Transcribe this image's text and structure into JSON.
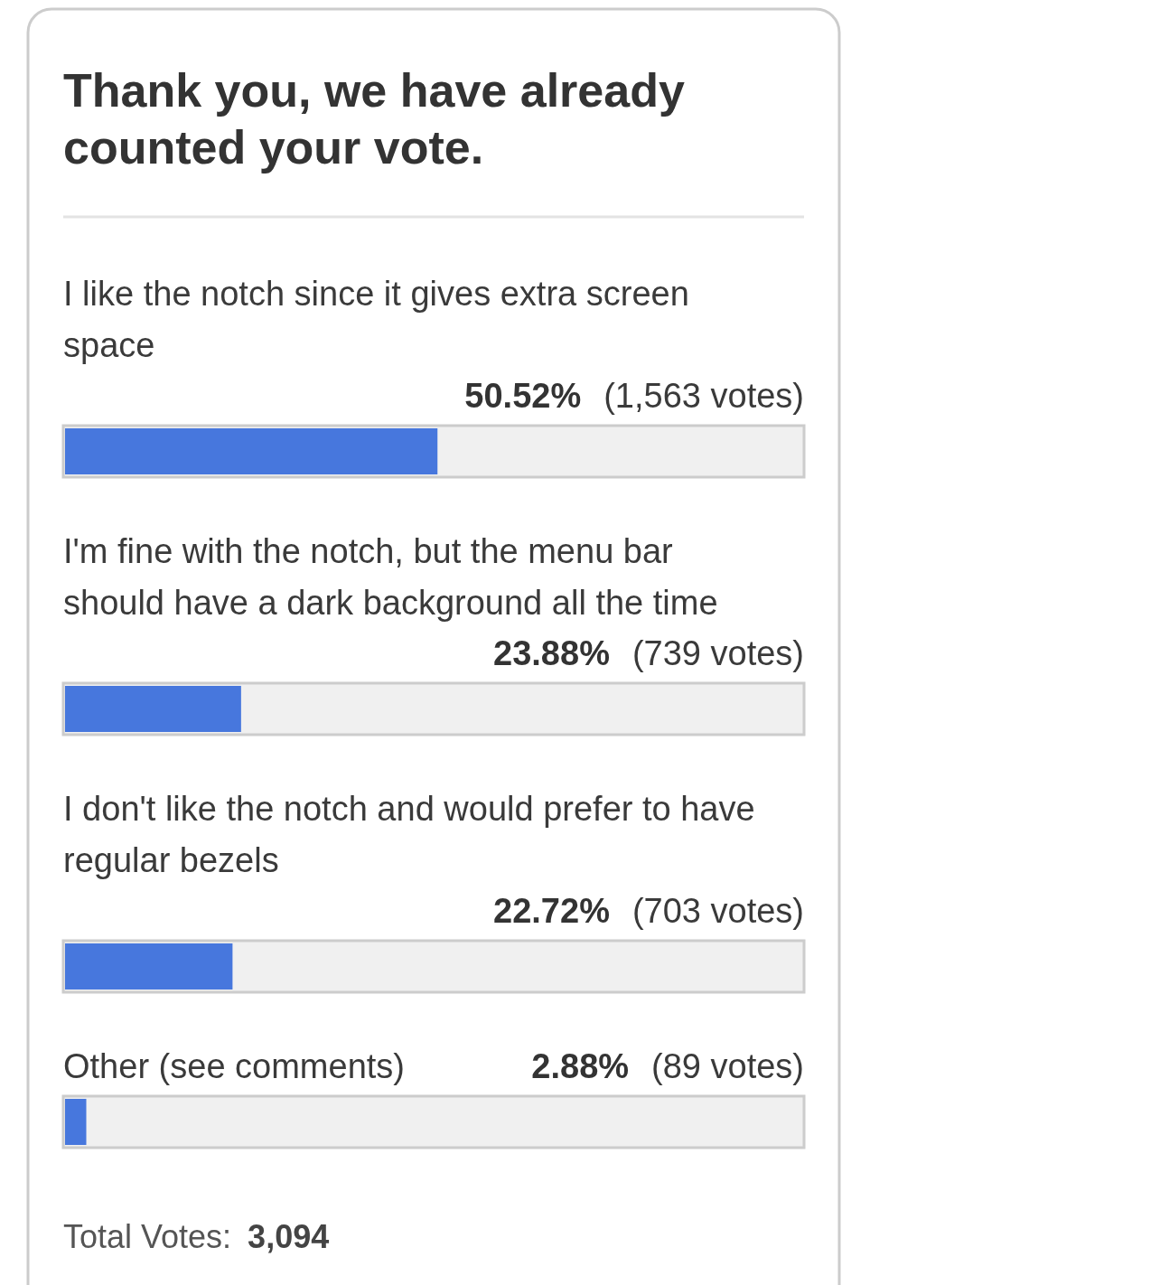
{
  "chart_data": {
    "type": "bar",
    "orientation": "horizontal",
    "title": "Thank you, we have already counted your vote.",
    "categories": [
      "I like the notch since it gives extra screen space",
      "I'm fine with the notch, but the menu bar should have a dark background all the time",
      "I don't like the notch and would prefer to have regular bezels",
      "Other (see comments)"
    ],
    "values": [
      50.52,
      23.88,
      22.72,
      2.88
    ],
    "value_labels": [
      "50.52% (1,563 votes)",
      "23.88% (739 votes)",
      "22.72% (703 votes)",
      "2.88% (89 votes)"
    ],
    "color": "#4777dd",
    "annotations": [
      "Total Votes: 3,094"
    ]
  }
}
